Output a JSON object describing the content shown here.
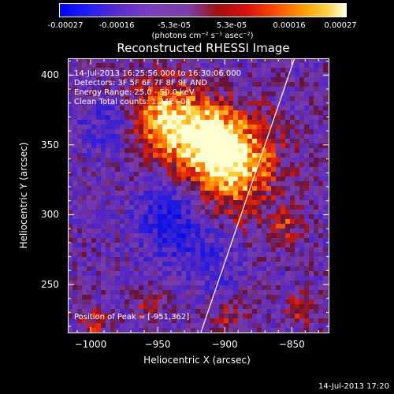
{
  "colorbar": {
    "ticks": [
      "-0.00027",
      "-0.00016",
      "-5.3e-05",
      "5.3e-05",
      "0.00016",
      "0.00027"
    ],
    "units": "(photons cm⁻² s⁻¹ asec⁻²)",
    "range": [
      -0.00027,
      0.00027
    ]
  },
  "chart_data": {
    "type": "heatmap",
    "title": "Reconstructed RHESSI Image",
    "xlabel": "Heliocentric X (arcsec)",
    "ylabel": "Heliocentric Y (arcsec)",
    "xlim": [
      -1017,
      -822
    ],
    "ylim": [
      215,
      412
    ],
    "xticks": [
      "−1000",
      "−950",
      "−900",
      "−850"
    ],
    "xtick_values": [
      -1000,
      -950,
      -900,
      -850
    ],
    "yticks": [
      "400",
      "350",
      "300",
      "250"
    ],
    "ytick_values": [
      400,
      350,
      300,
      250
    ],
    "limb_line": [
      [
        -918,
        215
      ],
      [
        -848,
        412
      ]
    ],
    "peak": [
      -951,
      362
    ]
  },
  "annotations": {
    "time_range": "14-Jul-2013 16:25:56.000 to 16:30:06.000",
    "detectors": "Detectors: 3F 5F 6F 7F 8F 9F AND",
    "energy_range": "Energy Range: 25.0 - 50.0 keV",
    "clean": "Clean     Total counts: 1.24E+04",
    "peak_position": "Position of Peak = [-951,362]"
  },
  "footer": "14-Jul-2013 17:20"
}
